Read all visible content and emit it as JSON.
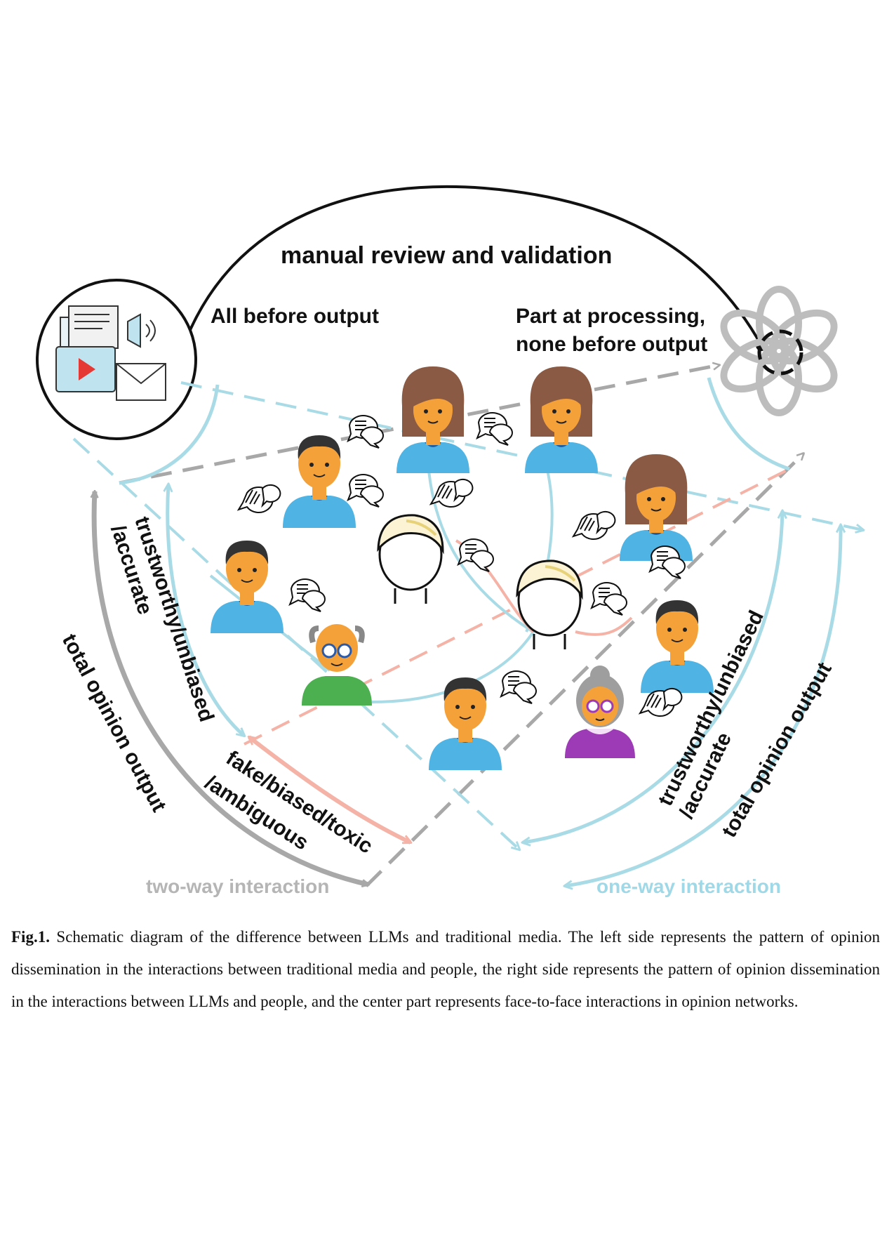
{
  "diagram": {
    "top_arc_label": "manual review and validation",
    "left_source_note": "All before output",
    "right_source_note_line1": "Part at processing,",
    "right_source_note_line2": "none before output",
    "left_outer_label": "total opinion output",
    "left_inner_label_line1": "trustworthy/unbiased",
    "left_inner_label_line2": "/accurate",
    "bottom_label_line1": "fake/biased/toxic",
    "bottom_label_line2": "/ambiguous",
    "right_inner_label_line1": "trustworthy/unbiased",
    "right_inner_label_line2": "/accurate",
    "right_outer_label": "total opinion output",
    "legend_two_way": "two-way interaction",
    "legend_one_way": "one-way interaction"
  },
  "colors": {
    "black": "#111111",
    "gray_dashed": "#a8a8a8",
    "light_blue": "#a9dbe6",
    "salmon": "#f4b3a6",
    "skin": "#f5a13a",
    "shirt_blue": "#4fb3e3",
    "hair_dark": "#333333",
    "hair_brown": "#8a5a44",
    "green_shirt": "#4caf50",
    "purple": "#9c3bb5",
    "legend_gray": "#b5b5b5",
    "legend_blue": "#9fd8e6"
  },
  "icons": {
    "media_icon": "traditional-media-icon",
    "llm_icon": "llm-logo-icon",
    "speech_icon": "speech-bubble-icon"
  },
  "caption": {
    "label": "Fig.1.",
    "text": " Schematic diagram of the difference between LLMs and traditional media. The left side represents the pattern of opinion dissemination in the interactions between traditional media and people, the right side represents the pattern of opinion dissemination in the interactions between LLMs and people, and the center part represents face-to-face interactions in opinion networks."
  }
}
